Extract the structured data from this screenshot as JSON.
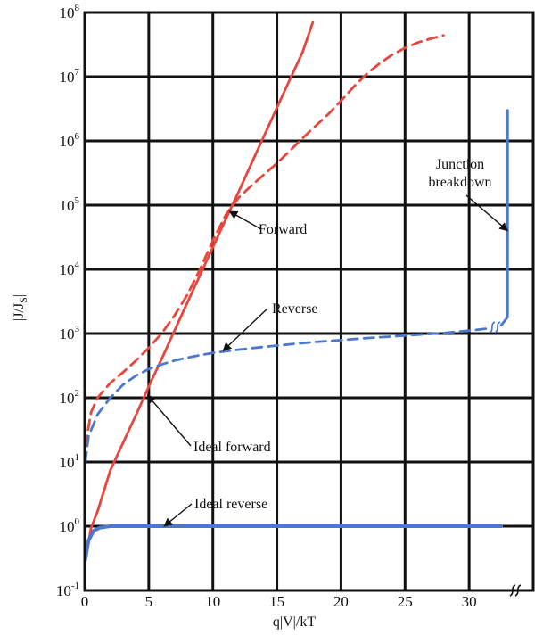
{
  "chart_data": {
    "type": "line",
    "xlabel": "q|V|/kT",
    "ylabel": "|J/J_S|",
    "ylabel_parts": {
      "main": "|J/J",
      "sub": "S",
      "end": "|"
    },
    "xlim": [
      0,
      35
    ],
    "ylim_exponents": [
      -1,
      8
    ],
    "y_scale": "log",
    "grid": true,
    "x_ticks": [
      "0",
      "5",
      "10",
      "15",
      "20",
      "25",
      "30"
    ],
    "y_ticks": [
      {
        "base": "10",
        "exp": "-1"
      },
      {
        "base": "10",
        "exp": "0"
      },
      {
        "base": "10",
        "exp": "1"
      },
      {
        "base": "10",
        "exp": "2"
      },
      {
        "base": "10",
        "exp": "3"
      },
      {
        "base": "10",
        "exp": "4"
      },
      {
        "base": "10",
        "exp": "5"
      },
      {
        "base": "10",
        "exp": "6"
      },
      {
        "base": "10",
        "exp": "7"
      },
      {
        "base": "10",
        "exp": "8"
      }
    ],
    "series": [
      {
        "name": "Ideal forward",
        "color": "#e8453c",
        "dash": "solid",
        "width": 2.8,
        "x": [
          0.05,
          0.5,
          1,
          2,
          3,
          4,
          5,
          6,
          7,
          8,
          9,
          10,
          11,
          12,
          13,
          14,
          15,
          16,
          17,
          17.8
        ],
        "y": [
          0.3,
          0.95,
          1.7,
          7.4,
          20,
          54,
          150,
          400,
          1100,
          3000,
          8100,
          22000,
          60000,
          160000.0,
          440000.0,
          1200000.0,
          3300000.0,
          8900000.0,
          24000000.0,
          70000000.0
        ]
      },
      {
        "name": "Forward",
        "color": "#e8453c",
        "dash": "dashed",
        "width": 2.8,
        "x": [
          0.05,
          0.5,
          1,
          2,
          3,
          4,
          5,
          6,
          7,
          8,
          9,
          10,
          11,
          12,
          13,
          14,
          15,
          16,
          17,
          18,
          19,
          20,
          21,
          22,
          23,
          24,
          25,
          26,
          27,
          28
        ],
        "y": [
          18,
          60,
          100,
          170,
          250,
          380,
          600,
          1000,
          1900,
          4000,
          10000,
          28000,
          70000,
          130000.0,
          200000.0,
          300000.0,
          450000.0,
          700000.0,
          1100000.0,
          1700000.0,
          2600000.0,
          4200000.0,
          7000000.0,
          11000000.0,
          16000000.0,
          22000000.0,
          28000000.0,
          34000000.0,
          39000000.0,
          44000000.0
        ]
      },
      {
        "name": "Reverse",
        "color": "#4a78cc",
        "dash": "dashed",
        "width": 2.8,
        "x": [
          0.05,
          0.3,
          1,
          2,
          3,
          4,
          5,
          6,
          7,
          8,
          9,
          10,
          12,
          14,
          16,
          18,
          20,
          22,
          24,
          26,
          28,
          30,
          31.5
        ],
        "y": [
          10,
          25,
          55,
          100,
          160,
          220,
          280,
          330,
          380,
          420,
          460,
          500,
          560,
          620,
          680,
          740,
          790,
          850,
          900,
          960,
          1020,
          1110,
          1200
        ]
      },
      {
        "name": "Ideal reverse",
        "color": "#4a78cc",
        "dash": "solid",
        "width": 4,
        "x": [
          0.05,
          0.3,
          0.7,
          1.2,
          2,
          5,
          10,
          20,
          32.5
        ],
        "y": [
          0.3,
          0.6,
          0.85,
          0.95,
          1.0,
          1.0,
          1.0,
          1.0,
          1.0
        ]
      },
      {
        "name": "Junction breakdown",
        "color": "#4a78cc",
        "dash": "solid",
        "width": 2.8,
        "x": [
          32.5,
          33.0,
          33.0
        ],
        "y": [
          1350,
          1800,
          3000000.0
        ]
      }
    ],
    "annotations": [
      {
        "text": "Forward",
        "points_to_series": "Forward"
      },
      {
        "text": "Reverse",
        "points_to_series": "Reverse"
      },
      {
        "text": "Ideal forward",
        "points_to_series": "Ideal forward"
      },
      {
        "text": "Ideal reverse",
        "points_to_series": "Ideal reverse"
      },
      {
        "text": "Junction",
        "text_line2": "breakdown",
        "points_to_series": "Junction breakdown"
      }
    ]
  }
}
